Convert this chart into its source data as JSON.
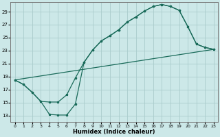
{
  "xlabel": "Humidex (Indice chaleur)",
  "bg_color": "#cce8e8",
  "grid_color": "#aacccc",
  "line_color": "#1a6b5a",
  "xlim": [
    -0.5,
    23.5
  ],
  "ylim": [
    12.0,
    30.5
  ],
  "xticks": [
    0,
    1,
    2,
    3,
    4,
    5,
    6,
    7,
    8,
    9,
    10,
    11,
    12,
    13,
    14,
    15,
    16,
    17,
    18,
    19,
    20,
    21,
    22,
    23
  ],
  "yticks": [
    13,
    15,
    17,
    19,
    21,
    23,
    25,
    27,
    29
  ],
  "curve1_x": [
    0,
    1,
    2,
    3,
    4,
    5,
    6,
    7,
    8,
    9,
    10,
    11,
    12,
    13,
    14,
    15,
    16,
    17,
    18,
    19,
    20,
    21,
    22,
    23
  ],
  "curve1_y": [
    18.5,
    17.8,
    16.6,
    15.2,
    13.2,
    13.1,
    13.1,
    14.8,
    21.2,
    23.1,
    24.5,
    25.3,
    26.2,
    27.4,
    28.2,
    29.1,
    29.8,
    30.1,
    29.8,
    29.2,
    26.7,
    24.0,
    23.5,
    23.2
  ],
  "curve2_x": [
    0,
    1,
    2,
    3,
    4,
    5,
    6,
    7,
    8,
    9,
    10,
    11,
    12,
    13,
    14,
    15,
    16,
    17,
    18,
    19,
    20,
    21,
    22,
    23
  ],
  "curve2_y": [
    18.5,
    17.8,
    16.6,
    15.2,
    15.1,
    15.1,
    16.2,
    18.8,
    21.2,
    23.1,
    24.5,
    25.3,
    26.2,
    27.4,
    28.2,
    29.1,
    29.8,
    30.1,
    29.8,
    29.2,
    26.7,
    24.0,
    23.5,
    23.2
  ],
  "curve3_x": [
    0,
    23
  ],
  "curve3_y": [
    18.5,
    23.2
  ]
}
